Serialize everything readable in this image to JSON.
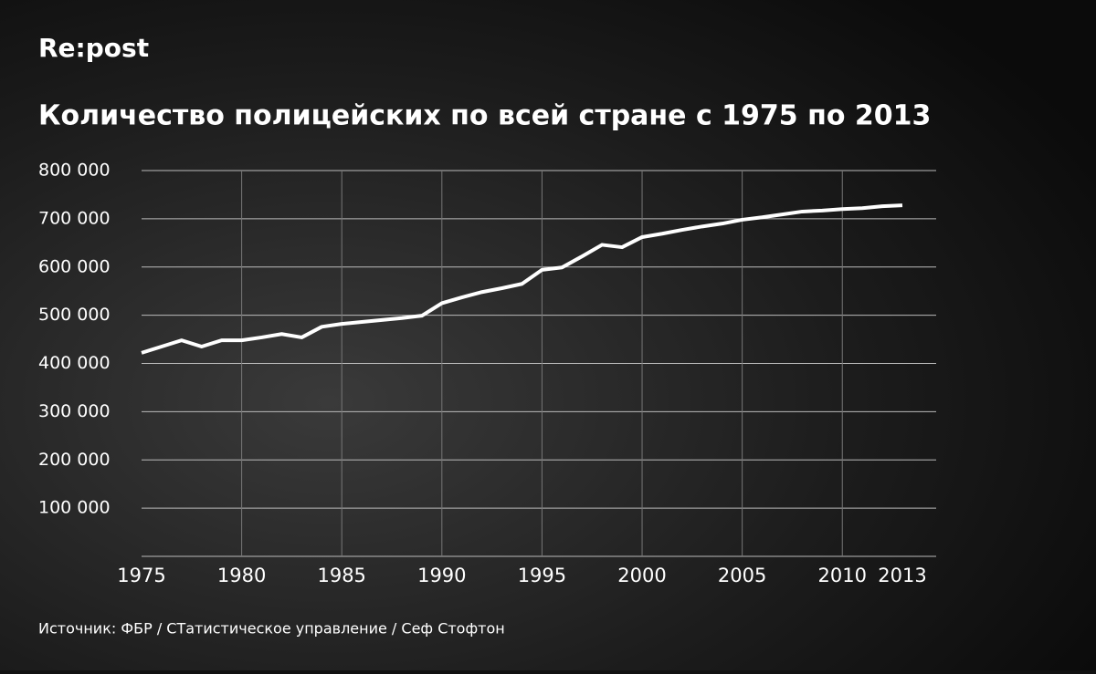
{
  "chart_data": {
    "type": "line",
    "brand": "Re:post",
    "title": "Количество полицейских по всей стране с 1975 по 2013",
    "source": "Источник: ФБР / СТатистическое управление / Сеф Стофтон",
    "x": [
      1975,
      1976,
      1977,
      1978,
      1979,
      1980,
      1981,
      1982,
      1983,
      1984,
      1985,
      1986,
      1987,
      1988,
      1989,
      1990,
      1991,
      1992,
      1993,
      1994,
      1995,
      1996,
      1997,
      1998,
      1999,
      2000,
      2001,
      2002,
      2003,
      2004,
      2005,
      2006,
      2007,
      2008,
      2009,
      2010,
      2011,
      2012,
      2013
    ],
    "values": [
      422000,
      435000,
      448000,
      435000,
      448000,
      448000,
      454000,
      461000,
      454000,
      476000,
      482000,
      486000,
      490000,
      494000,
      499000,
      525000,
      537000,
      548000,
      556000,
      565000,
      594000,
      599000,
      622000,
      646000,
      641000,
      662000,
      669000,
      677000,
      684000,
      690000,
      698000,
      703000,
      709000,
      715000,
      717000,
      720000,
      722000,
      726000,
      728000
    ],
    "color": "#ffffff",
    "xlim": [
      1975,
      2013
    ],
    "xticks": [
      1975,
      1980,
      1985,
      1990,
      1995,
      2000,
      2005,
      2010,
      2013
    ],
    "ylim": [
      0,
      800000
    ],
    "yticks": [
      {
        "value": 100000,
        "label": "100 000"
      },
      {
        "value": 200000,
        "label": "200 000"
      },
      {
        "value": 300000,
        "label": "300 000"
      },
      {
        "value": 400000,
        "label": "400 000"
      },
      {
        "value": 500000,
        "label": "500 000"
      },
      {
        "value": 600000,
        "label": "600 000"
      },
      {
        "value": 700000,
        "label": "700 000"
      },
      {
        "value": 800000,
        "label": "800 000"
      }
    ],
    "grid": true
  }
}
